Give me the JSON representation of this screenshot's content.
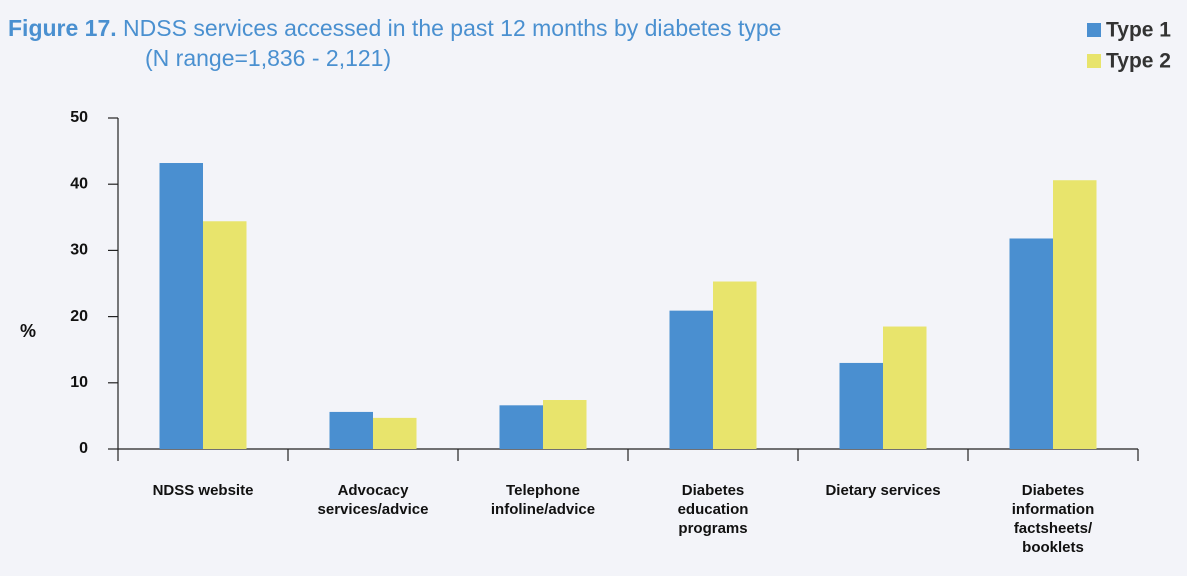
{
  "chart_data": {
    "type": "bar",
    "title_label": "Figure 17.",
    "title": "NDSS services accessed in the past 12 months by diabetes type",
    "subtitle": "(N range=1,836 - 2,121)",
    "y_label": "%",
    "categories": [
      "NDSS website",
      "Advocacy services/advice",
      "Telephone infoline/advice",
      "Diabetes education programs",
      "Dietary services",
      "Diabetes information factsheets/ booklets"
    ],
    "series": [
      {
        "name": "Type 1",
        "color": "#4a8fd0",
        "values": [
          43.2,
          5.6,
          6.6,
          20.9,
          13.0,
          31.8
        ]
      },
      {
        "name": "Type 2",
        "color": "#e8e46c",
        "values": [
          34.4,
          4.7,
          7.4,
          25.3,
          18.5,
          40.6
        ]
      }
    ],
    "ylim": [
      0,
      50
    ],
    "yticks": [
      0,
      10,
      20,
      30,
      40,
      50
    ],
    "grid": false,
    "legend": "top-right"
  }
}
